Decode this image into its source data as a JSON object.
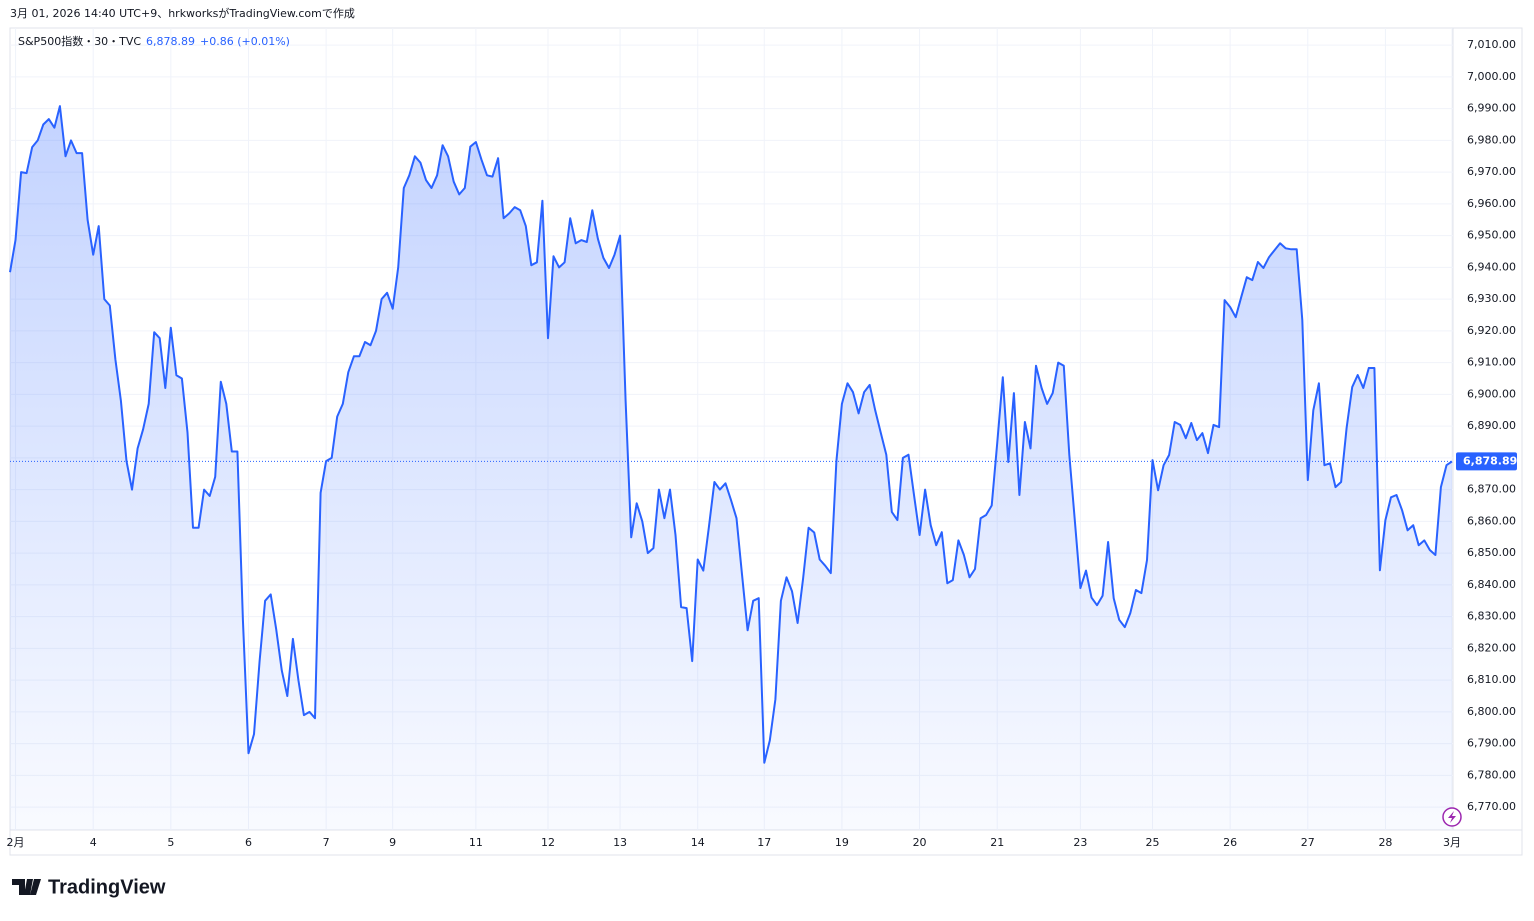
{
  "header": "3月 01, 2026 14:40 UTC+9、hrkworksがTradingView.comで作成",
  "logo": "TradingView",
  "chart_data": {
    "type": "line",
    "title": "S&P500指数・30・TVC",
    "price": "6,878.89",
    "change": "+0.86 (+0.01%)",
    "color": "#2962ff",
    "grid": true,
    "ylim": [
      6762.8,
      7015.4
    ],
    "yticks": [
      {
        "value": 6770,
        "label": "6,770.00"
      },
      {
        "value": 6780,
        "label": "6,780.00"
      },
      {
        "value": 6790,
        "label": "6,790.00"
      },
      {
        "value": 6800,
        "label": "6,800.00"
      },
      {
        "value": 6810,
        "label": "6,810.00"
      },
      {
        "value": 6820,
        "label": "6,820.00"
      },
      {
        "value": 6830,
        "label": "6,830.00"
      },
      {
        "value": 6840,
        "label": "6,840.00"
      },
      {
        "value": 6850,
        "label": "6,850.00"
      },
      {
        "value": 6860,
        "label": "6,860.00"
      },
      {
        "value": 6870,
        "label": "6,870.00"
      },
      {
        "value": 6880,
        "label": "6,880.00"
      },
      {
        "value": 6890,
        "label": "6,890.00"
      },
      {
        "value": 6900,
        "label": "6,900.00"
      },
      {
        "value": 6910,
        "label": "6,910.00"
      },
      {
        "value": 6920,
        "label": "6,920.00"
      },
      {
        "value": 6930,
        "label": "6,930.00"
      },
      {
        "value": 6940,
        "label": "6,940.00"
      },
      {
        "value": 6950,
        "label": "6,950.00"
      },
      {
        "value": 6960,
        "label": "6,960.00"
      },
      {
        "value": 6970,
        "label": "6,970.00"
      },
      {
        "value": 6980,
        "label": "6,980.00"
      },
      {
        "value": 6990,
        "label": "6,990.00"
      },
      {
        "value": 7000,
        "label": "7,000.00"
      },
      {
        "value": 7010,
        "label": "7,010.00"
      }
    ],
    "categories": [
      null,
      "2月",
      null,
      null,
      null,
      null,
      null,
      null,
      null,
      null,
      null,
      null,
      null,
      null,
      null,
      "4",
      null,
      null,
      null,
      null,
      null,
      null,
      null,
      null,
      null,
      null,
      null,
      null,
      null,
      "5",
      null,
      null,
      null,
      null,
      null,
      null,
      null,
      null,
      null,
      null,
      null,
      null,
      null,
      "6",
      null,
      null,
      null,
      null,
      null,
      null,
      null,
      null,
      null,
      null,
      null,
      null,
      null,
      "7",
      null,
      null,
      null,
      null,
      null,
      null,
      null,
      null,
      null,
      null,
      null,
      "9",
      null,
      null,
      null,
      null,
      null,
      null,
      null,
      null,
      null,
      null,
      null,
      null,
      null,
      null,
      "11",
      null,
      null,
      null,
      null,
      null,
      null,
      null,
      null,
      null,
      null,
      null,
      null,
      "12",
      null,
      null,
      null,
      null,
      null,
      null,
      null,
      null,
      null,
      null,
      null,
      null,
      "13",
      null,
      null,
      null,
      null,
      null,
      null,
      null,
      null,
      null,
      null,
      null,
      null,
      null,
      "14",
      null,
      null,
      null,
      null,
      null,
      null,
      null,
      null,
      null,
      null,
      null,
      "17",
      null,
      null,
      null,
      null,
      null,
      null,
      null,
      null,
      null,
      null,
      null,
      null,
      null,
      "19",
      null,
      null,
      null,
      null,
      null,
      null,
      null,
      null,
      null,
      null,
      null,
      null,
      null,
      "20",
      null,
      null,
      null,
      null,
      null,
      null,
      null,
      null,
      null,
      null,
      null,
      null,
      null,
      "21",
      null,
      null,
      null,
      null,
      null,
      null,
      null,
      null,
      null,
      null,
      null,
      null,
      null,
      null,
      "23",
      null,
      null,
      null,
      null,
      null,
      null,
      null,
      null,
      null,
      null,
      null,
      null,
      "25",
      null,
      null,
      null,
      null,
      null,
      null,
      null,
      null,
      null,
      null,
      null,
      null,
      null,
      "26",
      null,
      null,
      null,
      null,
      null,
      null,
      null,
      null,
      null,
      null,
      null,
      null,
      null,
      "27",
      null,
      null,
      null,
      null,
      null,
      null,
      null,
      null,
      null,
      null,
      null,
      null,
      null,
      "28",
      null,
      null,
      null,
      null,
      null,
      null,
      null,
      null,
      null,
      null,
      null,
      "3月"
    ],
    "values": [
      6938.5,
      6948.6,
      6970,
      6969.7,
      6977.9,
      6980,
      6985,
      6986.7,
      6984,
      6990.8,
      6975,
      6980,
      6976,
      6976,
      6955,
      6944,
      6953,
      6930,
      6928,
      6911,
      6898,
      6879,
      6870,
      6883,
      6889,
      6897,
      6919.6,
      6917.7,
      6902,
      6921,
      6906,
      6905,
      6888,
      6858,
      6858,
      6870,
      6868,
      6874,
      6904,
      6897,
      6882,
      6882,
      6829,
      6787,
      6793,
      6816,
      6835,
      6837,
      6826,
      6813,
      6805,
      6823,
      6810,
      6799,
      6800,
      6798,
      6869,
      6879,
      6880,
      6893,
      6897,
      6907,
      6912,
      6912,
      6916.5,
      6915.5,
      6920,
      6930,
      6932,
      6927,
      6940,
      6965,
      6969,
      6975,
      6973,
      6967.5,
      6965,
      6969,
      6978.5,
      6975,
      6967,
      6963,
      6965,
      6978,
      6979.5,
      6974,
      6969,
      6968.6,
      6974.4,
      6955.5,
      6957,
      6959,
      6958,
      6953,
      6940.7,
      6941.6,
      6961,
      6917.7,
      6943.5,
      6940,
      6941.6,
      6955.5,
      6947.6,
      6948.6,
      6948,
      6958,
      6949,
      6943,
      6939.8,
      6944,
      6950,
      6898,
      6855,
      6865.7,
      6860,
      6850,
      6851.6,
      6870,
      6861,
      6870,
      6855.7,
      6833,
      6832.7,
      6816,
      6848,
      6844.5,
      6858,
      6872.4,
      6870,
      6872,
      6866.7,
      6861,
      6843,
      6825.7,
      6835,
      6835.8,
      6784,
      6791,
      6804,
      6835,
      6842.4,
      6838,
      6828,
      6842,
      6858,
      6856.5,
      6848,
      6846,
      6843.7,
      6879,
      6897,
      6903.5,
      6900.7,
      6894,
      6900.7,
      6903,
      6895,
      6888,
      6881,
      6863,
      6860.4,
      6880,
      6881,
      6868.3,
      6855.7,
      6870,
      6858.8,
      6852.5,
      6856.6,
      6840.5,
      6841.5,
      6854,
      6849.4,
      6842.4,
      6845,
      6861,
      6862,
      6865,
      6884.6,
      6905.4,
      6878.7,
      6900.4,
      6868.3,
      6891.3,
      6883,
      6909,
      6902,
      6897,
      6900.4,
      6910,
      6909,
      6881,
      6860,
      6839,
      6844.5,
      6836,
      6833.6,
      6836.6,
      6853.5,
      6835.8,
      6829,
      6826.7,
      6831.1,
      6838.4,
      6837.4,
      6847.8,
      6879.3,
      6869.8,
      6877.7,
      6880.9,
      6891.3,
      6890.4,
      6886.2,
      6891,
      6885.6,
      6887.8,
      6881.5,
      6890.4,
      6889.7,
      6929.7,
      6927.5,
      6924.3,
      6930.6,
      6936.9,
      6936,
      6941.7,
      6939.8,
      6943.2,
      6945.4,
      6947.6,
      6946,
      6945.7,
      6945.7,
      6923.4,
      6873,
      6895,
      6903.5,
      6877.7,
      6878.3,
      6870.8,
      6872.4,
      6889.4,
      6902.3,
      6906.1,
      6902,
      6908.3,
      6908.3,
      6844.6,
      6860.4,
      6867.6,
      6868.3,
      6863.5,
      6857.2,
      6858.8,
      6852.5,
      6854,
      6851,
      6849.4,
      6870.8,
      6877.7,
      6878.89
    ]
  }
}
